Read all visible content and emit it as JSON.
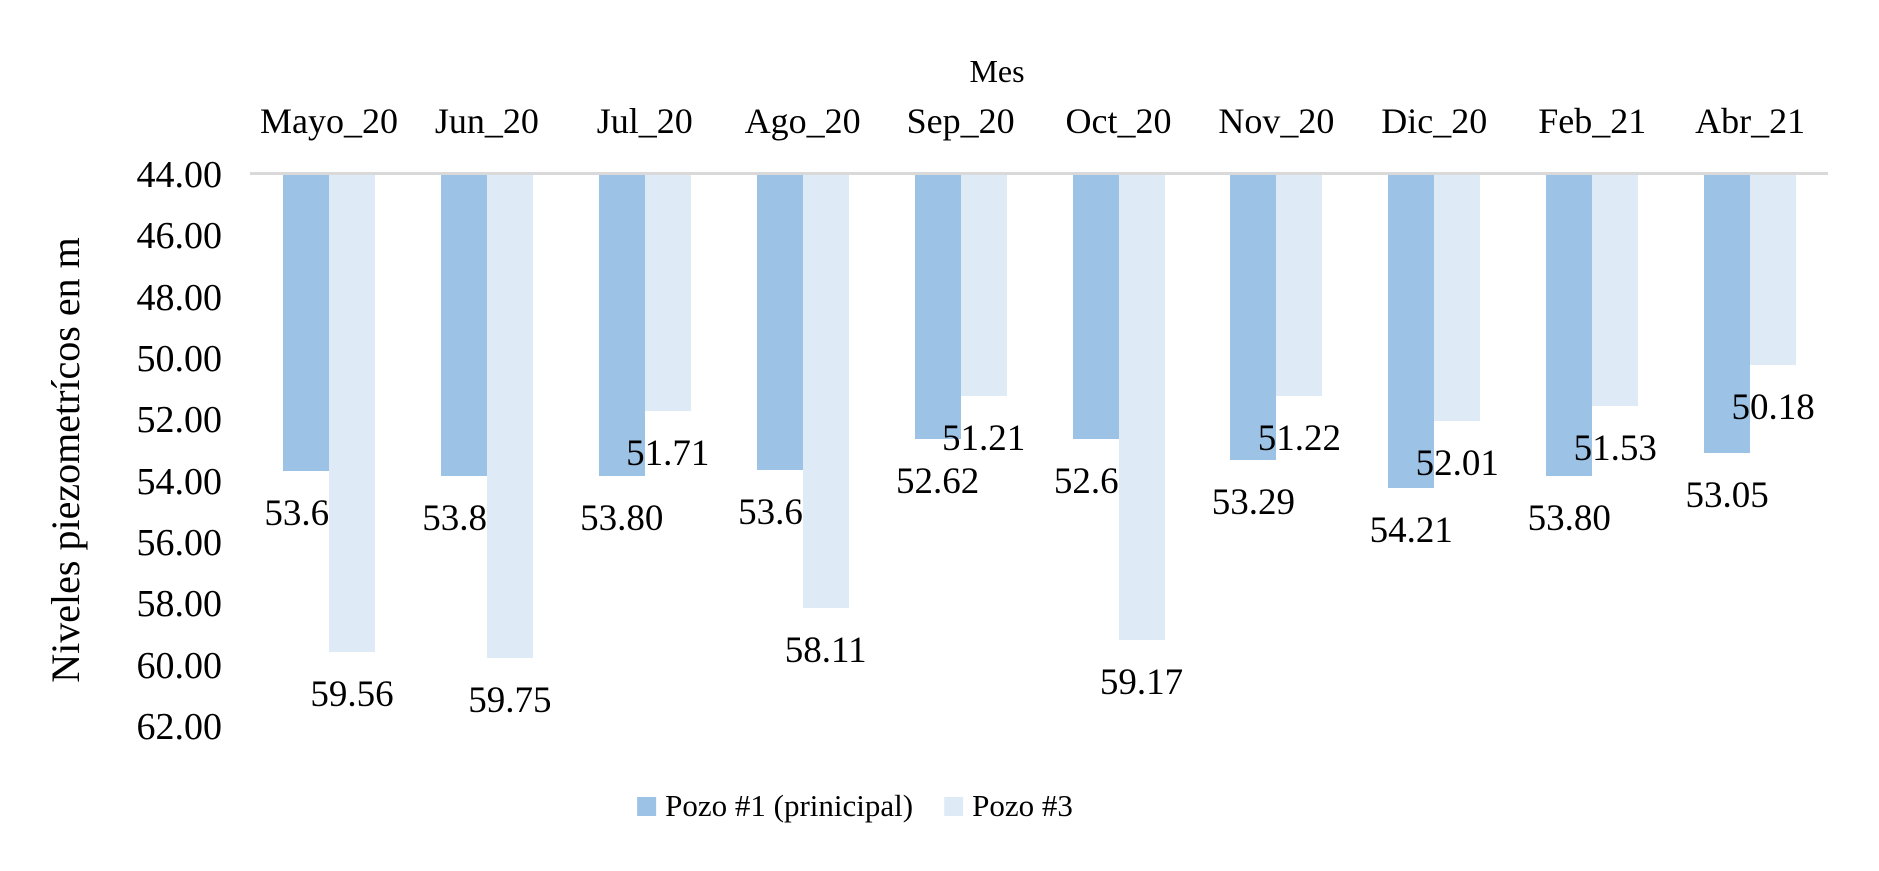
{
  "chart_data": {
    "type": "bar",
    "orientation": "columns-hanging-from-top-axis",
    "xlabel": "Mes",
    "ylabel": "Niveles piezometrícos en m",
    "categories": [
      "Mayo_20",
      "Jun_20",
      "Jul_20",
      "Ago_20",
      "Sep_20",
      "Oct_20",
      "Nov_20",
      "Dic_20",
      "Feb_21",
      "Abr_21"
    ],
    "series": [
      {
        "name": "Pozo #1 (prinicipal)",
        "color": "#9CC2E5",
        "values": [
          53.66,
          53.8,
          53.8,
          53.63,
          52.62,
          52.62,
          53.29,
          54.21,
          53.8,
          53.05
        ],
        "labels": [
          "53.66",
          "53.80",
          "53.80",
          "53.63",
          "52.62",
          "52.62",
          "53.29",
          "54.21",
          "53.80",
          "53.05"
        ]
      },
      {
        "name": "Pozo #3",
        "color": "#DEEBF7",
        "values": [
          59.56,
          59.75,
          51.71,
          58.11,
          51.21,
          59.17,
          51.22,
          52.01,
          51.53,
          50.18
        ],
        "labels": [
          "59.56",
          "59.75",
          "51.71",
          "58.11",
          "51.21",
          "59.17",
          "51.22",
          "52.01",
          "51.53",
          "50.18"
        ]
      }
    ],
    "y_axis": {
      "min": 44,
      "max": 62,
      "step": 2,
      "inverted": true,
      "tick_labels": [
        "44.00",
        "46.00",
        "48.00",
        "50.00",
        "52.00",
        "54.00",
        "56.00",
        "58.00",
        "60.00",
        "62.00"
      ]
    },
    "gridlines": "none",
    "axis_line_color": "#D9D9D9",
    "text_color": "#000000",
    "background_color": "#FFFFFF",
    "legend_position": "bottom"
  }
}
